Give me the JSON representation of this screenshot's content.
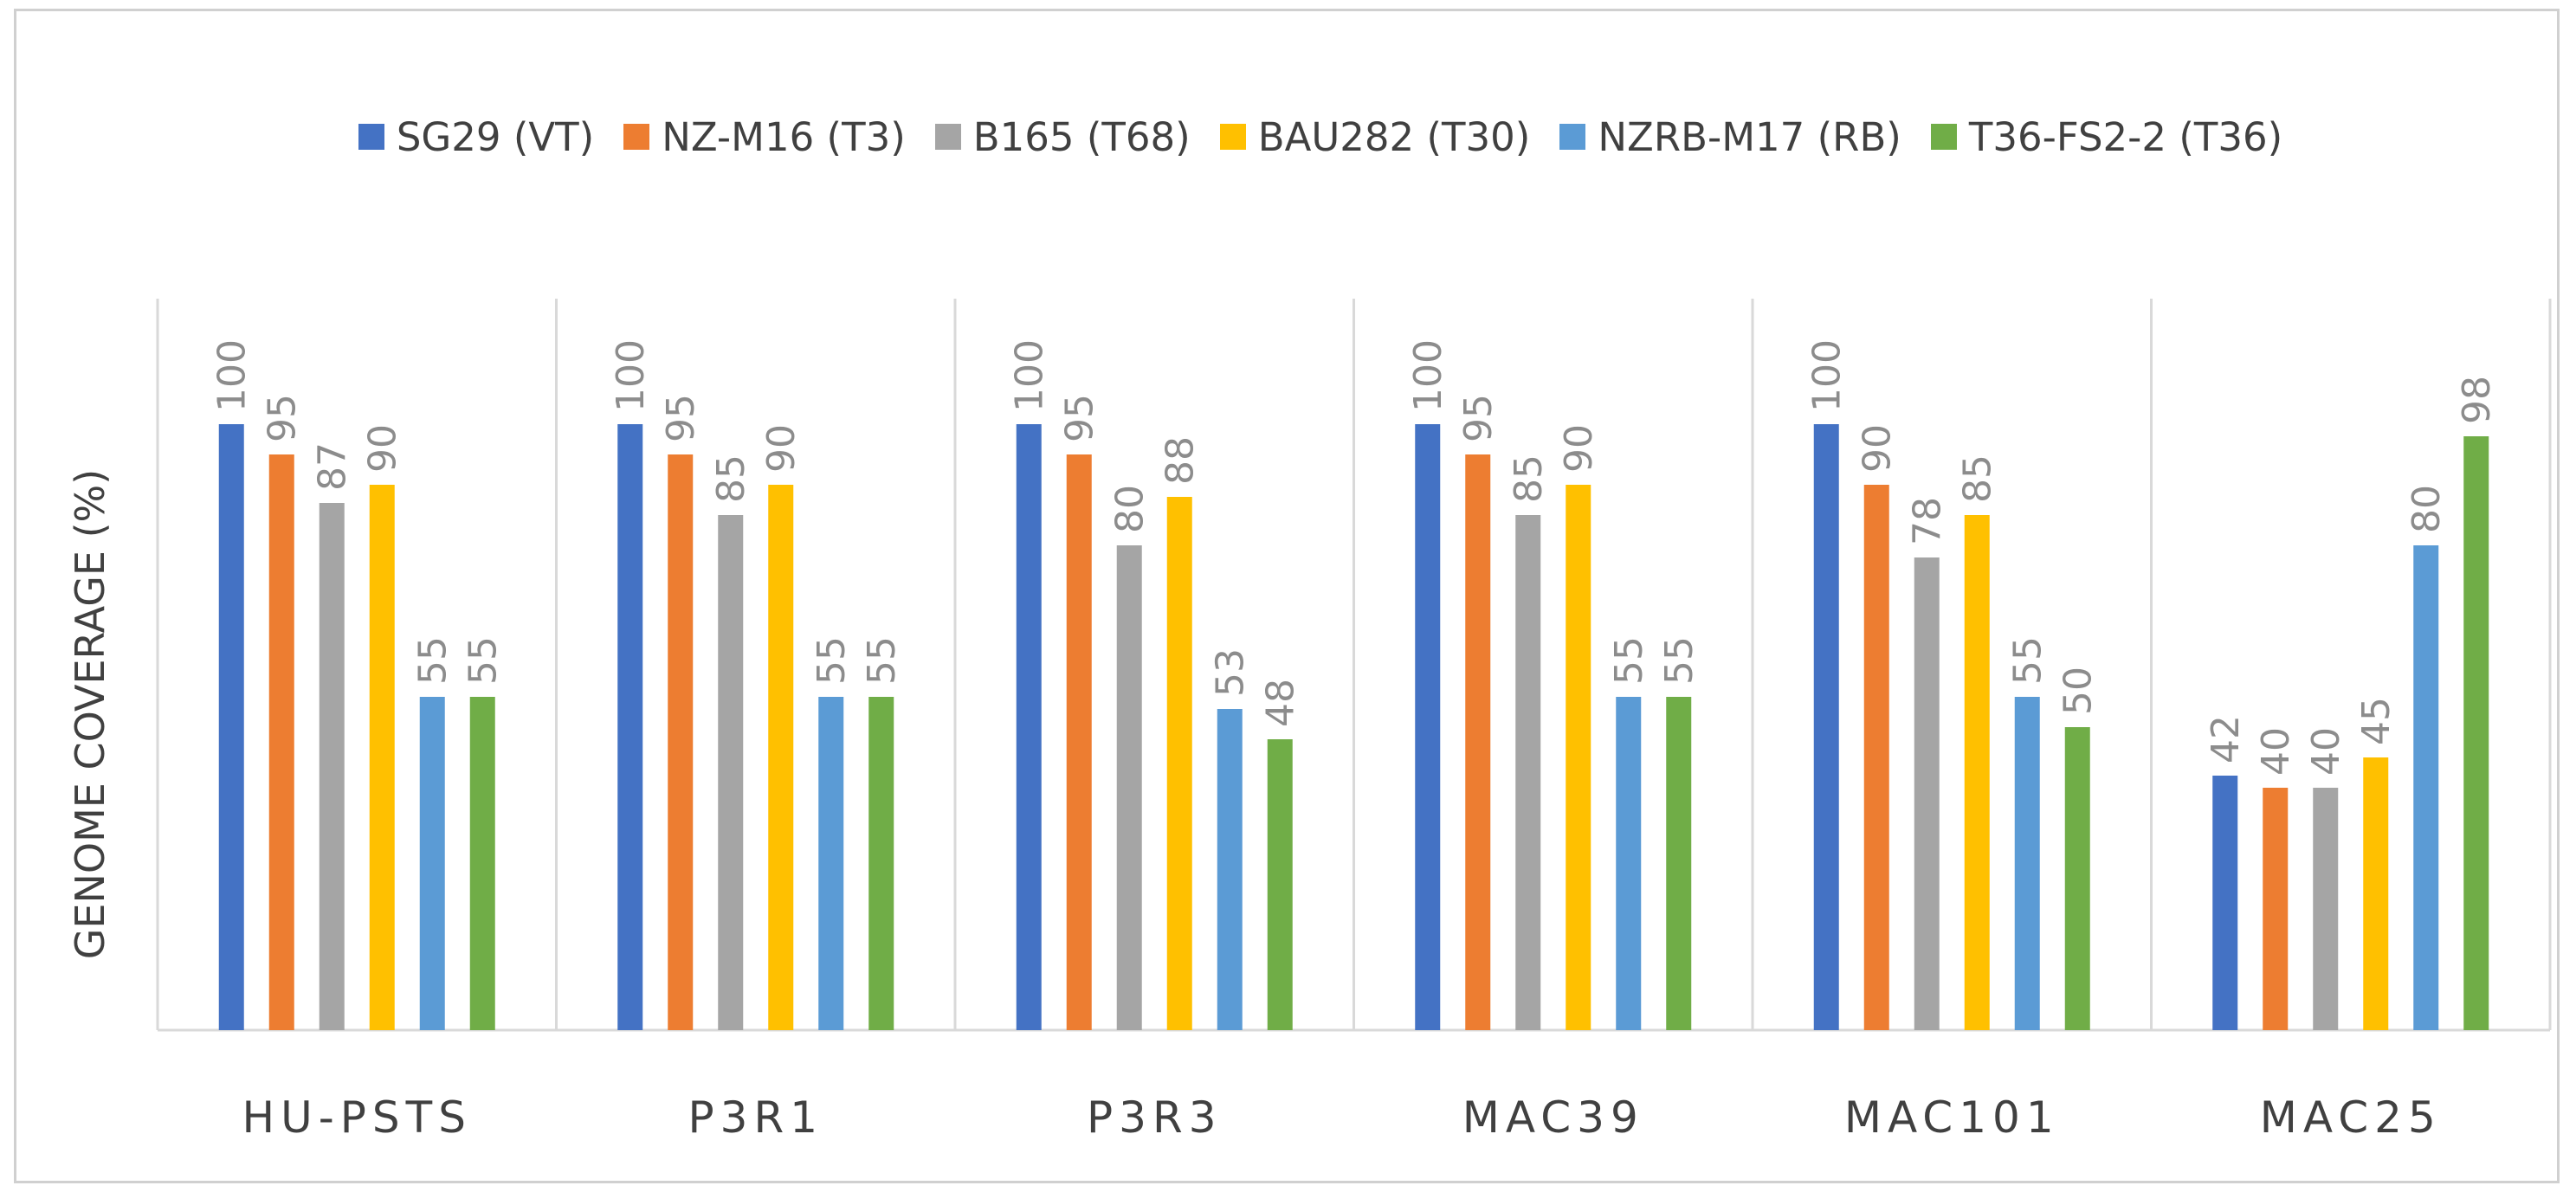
{
  "chart_data": {
    "type": "bar",
    "title": "",
    "xlabel": "",
    "ylabel": "GENOME COVERAGE (%)",
    "ylim": [
      0,
      120
    ],
    "grid": false,
    "legend_position": "top",
    "categories": [
      "HU-PSTS",
      "P3R1",
      "P3R3",
      "MAC39",
      "MAC101",
      "MAC25"
    ],
    "series": [
      {
        "name": "SG29 (VT)",
        "color": "#4472c4",
        "values": [
          100,
          100,
          100,
          100,
          100,
          42
        ]
      },
      {
        "name": "NZ-M16 (T3)",
        "color": "#ed7d31",
        "values": [
          95,
          95,
          95,
          95,
          90,
          40
        ]
      },
      {
        "name": "B165 (T68)",
        "color": "#a5a5a5",
        "values": [
          87,
          85,
          80,
          85,
          78,
          40
        ]
      },
      {
        "name": "BAU282 (T30)",
        "color": "#ffc000",
        "values": [
          90,
          90,
          88,
          90,
          85,
          45
        ]
      },
      {
        "name": "NZRB-M17 (RB)",
        "color": "#5b9bd5",
        "values": [
          55,
          55,
          53,
          55,
          55,
          80
        ]
      },
      {
        "name": "T36-FS2-2 (T36)",
        "color": "#70ad47",
        "values": [
          55,
          55,
          48,
          55,
          50,
          98
        ]
      }
    ],
    "data_labels_color": "#8c8c8c",
    "axis_color": "#d9d9d9"
  }
}
